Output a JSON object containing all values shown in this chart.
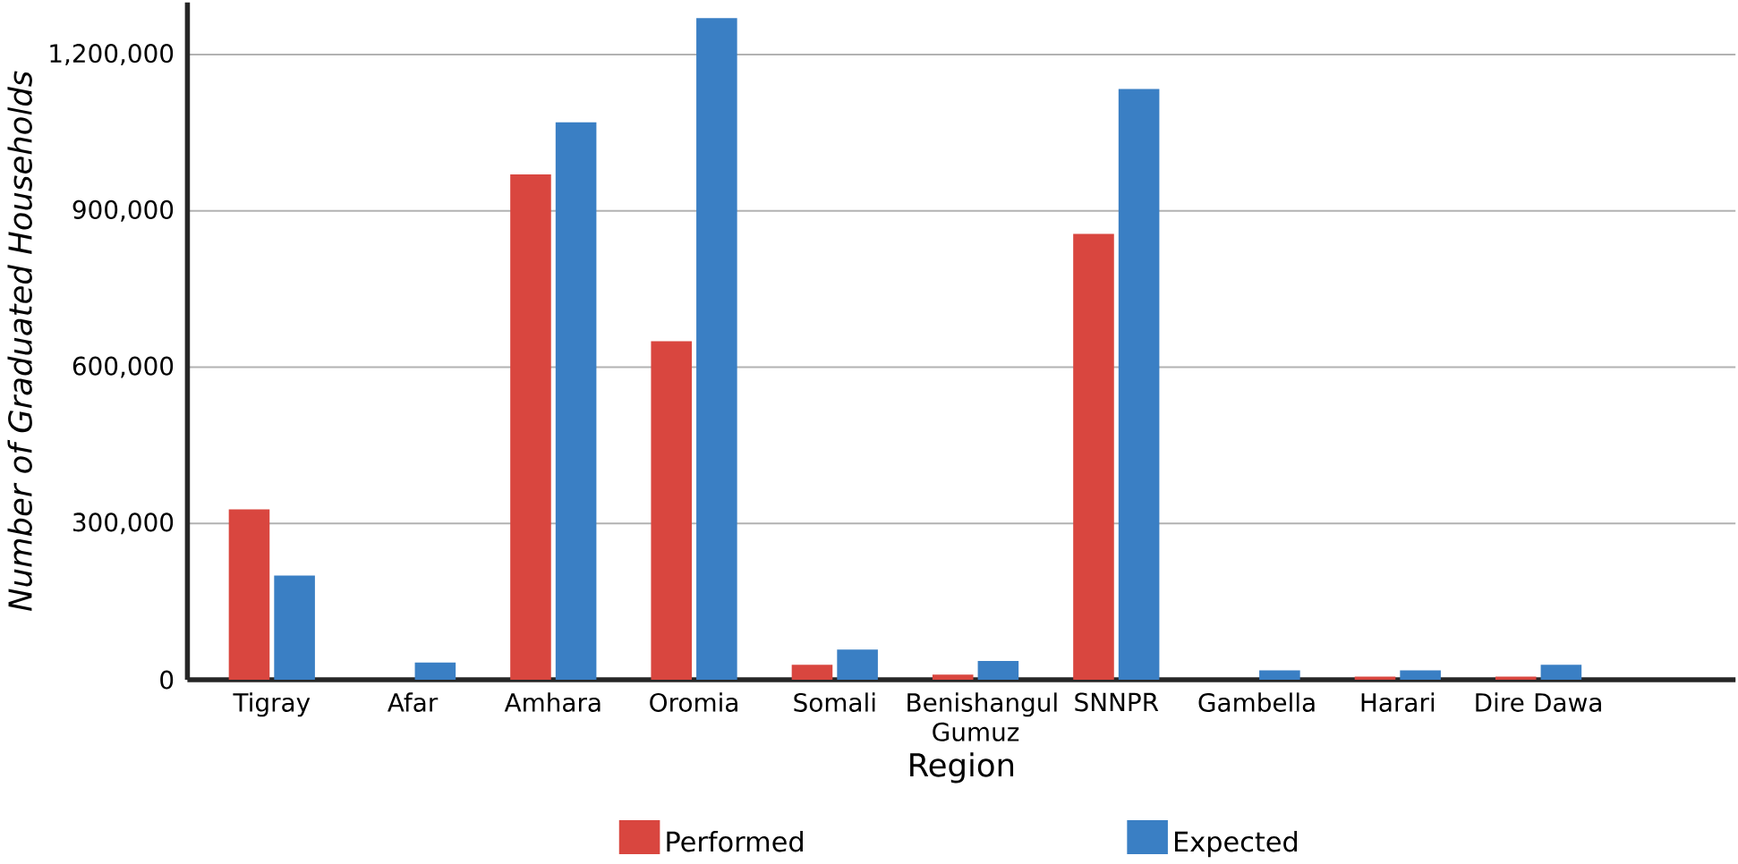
{
  "chart_data": {
    "type": "bar",
    "xlabel": "Region",
    "ylabel": "*Number of Graduated Households*",
    "categories": [
      "Tigray",
      "Afar",
      "Amhara",
      "Oromia",
      "Somali",
      "Benishangul Gumuz",
      "SNNPR",
      "Gambella",
      "Harari",
      "Dire Dawa"
    ],
    "series": [
      {
        "name": "Performed",
        "color": "#d9463f",
        "values": [
          327000,
          0,
          970000,
          650000,
          29000,
          10000,
          856000,
          0,
          6000,
          6000
        ]
      },
      {
        "name": "Expected",
        "color": "#3a7fc4",
        "values": [
          200000,
          33000,
          1070000,
          1270000,
          58000,
          36000,
          1134000,
          18000,
          18000,
          29000
        ]
      }
    ],
    "ylim": [
      0,
      1300000
    ],
    "yticks": [
      {
        "value": 0,
        "label": "0"
      },
      {
        "value": 300000,
        "label": "300,000"
      },
      {
        "value": 600000,
        "label": "600,000"
      },
      {
        "value": 900000,
        "label": "900,000"
      },
      {
        "value": 1200000,
        "label": "1,200,000"
      }
    ],
    "grid": "y",
    "legend": "bottom"
  }
}
